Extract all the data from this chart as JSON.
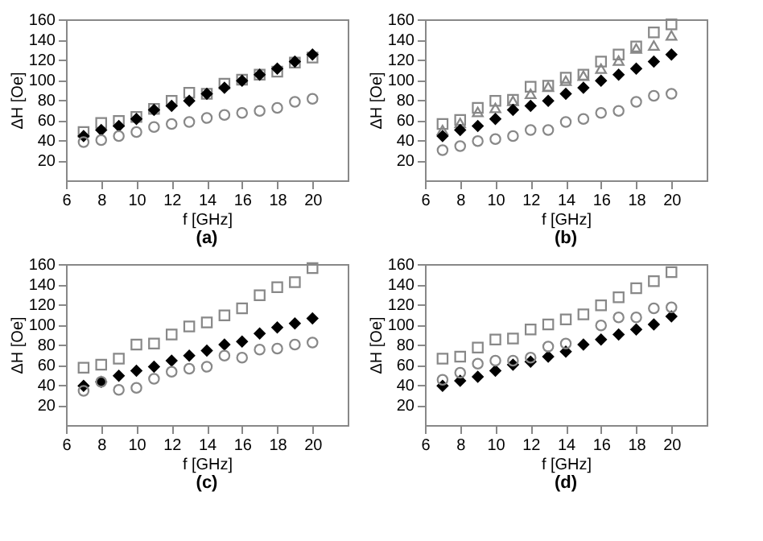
{
  "chart_data": [
    {
      "type": "scatter",
      "title": "(a)",
      "xlabel": "f [GHz]",
      "ylabel": "ΔH [Oe]",
      "xlim": [
        6,
        22
      ],
      "ylim": [
        0,
        160
      ],
      "xticks": [
        6,
        8,
        10,
        12,
        14,
        16,
        18,
        20
      ],
      "yticks": [
        20,
        40,
        60,
        80,
        100,
        120,
        140,
        160
      ],
      "grid": false,
      "legend": false,
      "x": [
        7,
        8,
        9,
        10,
        11,
        12,
        13,
        14,
        15,
        16,
        17,
        18,
        19,
        20
      ],
      "series": [
        {
          "marker": "square",
          "color": "#888888",
          "values": [
            48,
            57,
            59,
            63,
            71,
            79,
            87,
            86,
            96,
            100,
            105,
            108,
            117,
            122
          ]
        },
        {
          "marker": "diamond",
          "color": "#000000",
          "values": [
            44,
            50,
            54,
            61,
            70,
            74,
            79,
            86,
            92,
            99,
            105,
            111,
            118,
            125
          ]
        },
        {
          "marker": "circle",
          "color": "#888888",
          "values": [
            38,
            40,
            44,
            48,
            53,
            56,
            58,
            62,
            65,
            67,
            69,
            72,
            78,
            81
          ]
        }
      ]
    },
    {
      "type": "scatter",
      "title": "(b)",
      "xlabel": "f [GHz]",
      "ylabel": "ΔH [Oe]",
      "xlim": [
        6,
        22
      ],
      "ylim": [
        0,
        160
      ],
      "xticks": [
        6,
        8,
        10,
        12,
        14,
        16,
        18,
        20
      ],
      "yticks": [
        20,
        40,
        60,
        80,
        100,
        120,
        140,
        160
      ],
      "grid": false,
      "legend": false,
      "x": [
        7,
        8,
        9,
        10,
        11,
        12,
        13,
        14,
        15,
        16,
        17,
        18,
        19,
        20
      ],
      "series": [
        {
          "marker": "square",
          "color": "#888888",
          "values": [
            56,
            60,
            72,
            79,
            80,
            93,
            94,
            102,
            105,
            118,
            125,
            133,
            147,
            155
          ]
        },
        {
          "marker": "triangle",
          "color": "#888888",
          "values": [
            50,
            57,
            68,
            72,
            79,
            86,
            93,
            99,
            104,
            111,
            119,
            131,
            134,
            144
          ]
        },
        {
          "marker": "diamond",
          "color": "#000000",
          "values": [
            44,
            50,
            54,
            61,
            70,
            74,
            79,
            86,
            92,
            99,
            105,
            111,
            118,
            125
          ]
        },
        {
          "marker": "circle",
          "color": "#888888",
          "values": [
            30,
            34,
            39,
            41,
            44,
            50,
            50,
            58,
            61,
            67,
            69,
            78,
            84,
            86
          ]
        }
      ]
    },
    {
      "type": "scatter",
      "title": "(c)",
      "xlabel": "f [GHz]",
      "ylabel": "ΔH [Oe]",
      "xlim": [
        6,
        22
      ],
      "ylim": [
        0,
        160
      ],
      "xticks": [
        6,
        8,
        10,
        12,
        14,
        16,
        18,
        20
      ],
      "yticks": [
        20,
        40,
        60,
        80,
        100,
        120,
        140,
        160
      ],
      "grid": false,
      "legend": false,
      "x": [
        7,
        8,
        9,
        10,
        11,
        12,
        13,
        14,
        15,
        16,
        17,
        18,
        19,
        20
      ],
      "series": [
        {
          "marker": "square",
          "color": "#888888",
          "values": [
            57,
            60,
            66,
            80,
            81,
            90,
            98,
            102,
            109,
            116,
            129,
            137,
            142,
            156
          ]
        },
        {
          "marker": "diamond",
          "color": "#000000",
          "values": [
            39,
            43,
            49,
            54,
            58,
            64,
            69,
            74,
            80,
            83,
            91,
            97,
            101,
            106
          ]
        },
        {
          "marker": "circle",
          "color": "#888888",
          "values": [
            34,
            43,
            35,
            37,
            46,
            53,
            56,
            58,
            69,
            67,
            75,
            76,
            80,
            82
          ]
        }
      ]
    },
    {
      "type": "scatter",
      "title": "(d)",
      "xlabel": "f [GHz]",
      "ylabel": "ΔH [Oe]",
      "xlim": [
        6,
        22
      ],
      "ylim": [
        0,
        160
      ],
      "xticks": [
        6,
        8,
        10,
        12,
        14,
        16,
        18,
        20
      ],
      "yticks": [
        20,
        40,
        60,
        80,
        100,
        120,
        140,
        160
      ],
      "grid": false,
      "legend": false,
      "x": [
        7,
        8,
        9,
        10,
        11,
        12,
        13,
        14,
        15,
        16,
        17,
        18,
        19,
        20
      ],
      "series": [
        {
          "marker": "square",
          "color": "#888888",
          "values": [
            66,
            68,
            77,
            85,
            86,
            95,
            100,
            105,
            110,
            119,
            127,
            136,
            143,
            152
          ]
        },
        {
          "marker": "diamond",
          "color": "#000000",
          "values": [
            39,
            44,
            48,
            54,
            60,
            63,
            68,
            73,
            80,
            85,
            90,
            95,
            100,
            108
          ]
        },
        {
          "marker": "circle",
          "color": "#888888",
          "values": [
            45,
            52,
            61,
            64,
            64,
            67,
            78,
            81,
            null,
            99,
            107,
            107,
            116,
            117
          ]
        }
      ]
    }
  ]
}
